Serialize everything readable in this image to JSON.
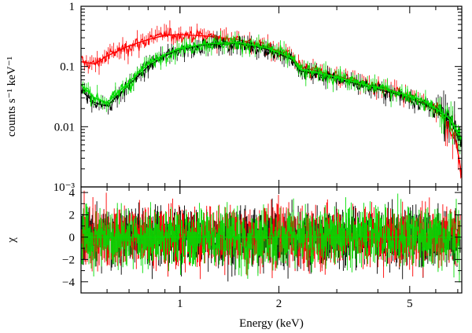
{
  "chart_data": [
    {
      "type": "line",
      "panel": "spectrum",
      "ylabel": "counts s⁻¹ keV⁻¹",
      "yscale": "log",
      "xscale": "log",
      "xlim": [
        0.5,
        7.2
      ],
      "ylim": [
        0.001,
        1
      ],
      "y_tick_labels": [
        "1",
        "0.1",
        "0.01",
        "10⁻³"
      ],
      "y_tick_values": [
        1,
        0.1,
        0.01,
        0.001
      ],
      "series": [
        {
          "color": "#ff0000",
          "x": [
            0.5,
            0.55,
            0.6,
            0.7,
            0.8,
            0.9,
            1.0,
            1.2,
            1.5,
            1.8,
            2.0,
            2.2,
            2.3,
            2.6,
            3.0,
            3.5,
            4.0,
            5.0,
            5.5,
            6.0,
            6.5,
            6.8,
            7.0,
            7.2
          ],
          "y": [
            0.12,
            0.11,
            0.15,
            0.22,
            0.28,
            0.33,
            0.34,
            0.32,
            0.28,
            0.22,
            0.18,
            0.15,
            0.1,
            0.085,
            0.07,
            0.055,
            0.045,
            0.03,
            0.025,
            0.018,
            0.012,
            0.008,
            0.004,
            0.0015
          ]
        },
        {
          "color": "#000000",
          "x": [
            0.5,
            0.55,
            0.6,
            0.7,
            0.8,
            0.9,
            1.0,
            1.2,
            1.5,
            1.8,
            2.0,
            2.2,
            2.3,
            2.6,
            3.0,
            3.5,
            4.0,
            5.0,
            5.5,
            6.0,
            6.5,
            6.8,
            7.0,
            7.2
          ],
          "y": [
            0.04,
            0.025,
            0.022,
            0.05,
            0.1,
            0.15,
            0.19,
            0.23,
            0.24,
            0.2,
            0.16,
            0.13,
            0.085,
            0.075,
            0.063,
            0.05,
            0.042,
            0.03,
            0.024,
            0.019,
            0.014,
            0.01,
            0.007,
            0.005
          ]
        },
        {
          "color": "#00dd00",
          "x": [
            0.5,
            0.55,
            0.6,
            0.7,
            0.8,
            0.9,
            1.0,
            1.2,
            1.5,
            1.8,
            2.0,
            2.2,
            2.3,
            2.6,
            3.0,
            3.5,
            4.0,
            5.0,
            5.5,
            6.0,
            6.5,
            6.8,
            7.0,
            7.2
          ],
          "y": [
            0.05,
            0.03,
            0.025,
            0.055,
            0.11,
            0.16,
            0.2,
            0.24,
            0.25,
            0.21,
            0.17,
            0.14,
            0.09,
            0.08,
            0.067,
            0.053,
            0.045,
            0.033,
            0.027,
            0.02,
            0.015,
            0.011,
            0.008,
            0.006
          ]
        }
      ]
    },
    {
      "type": "scatter",
      "panel": "residuals",
      "ylabel": "χ",
      "xlabel": "Energy (keV)",
      "xscale": "log",
      "xlim": [
        0.5,
        7.2
      ],
      "ylim": [
        -5,
        4.5
      ],
      "y_tick_labels": [
        "4",
        "2",
        "0",
        "−2",
        "−4"
      ],
      "y_tick_values": [
        4,
        2,
        0,
        -2,
        -4
      ],
      "x_tick_labels": [
        "1",
        "2",
        "5"
      ],
      "x_tick_values": [
        1,
        2,
        5
      ],
      "series_colors": [
        "#000000",
        "#ff0000",
        "#00dd00"
      ],
      "scatter_range": [
        -4,
        4
      ]
    }
  ]
}
